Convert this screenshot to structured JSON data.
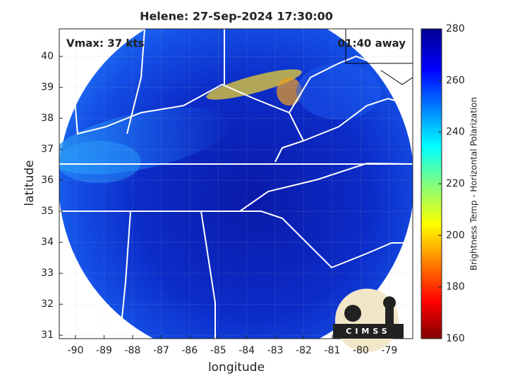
{
  "chart_data": {
    "type": "map",
    "title": "Helene: 27-Sep-2024 17:30:00",
    "annotations": [
      "Vmax: 37 kts",
      "01:40 away"
    ],
    "xlabel": "longitude",
    "ylabel": "latitude",
    "xlim": [
      -90.57,
      -78.18
    ],
    "ylim": [
      30.89,
      40.89
    ],
    "xticks": [
      -90,
      -89,
      -88,
      -87,
      -86,
      -85,
      -84,
      -83,
      -82,
      -81,
      -80,
      -79
    ],
    "yticks": [
      31,
      32,
      33,
      34,
      35,
      36,
      37,
      38,
      39,
      40
    ],
    "grid": true,
    "colorbar": {
      "label": "Brightness Temp - Horizontal Polarization",
      "lim": [
        160,
        280
      ],
      "ticks": [
        160,
        180,
        200,
        220,
        240,
        260,
        280
      ]
    },
    "logo": "CIMSS"
  }
}
